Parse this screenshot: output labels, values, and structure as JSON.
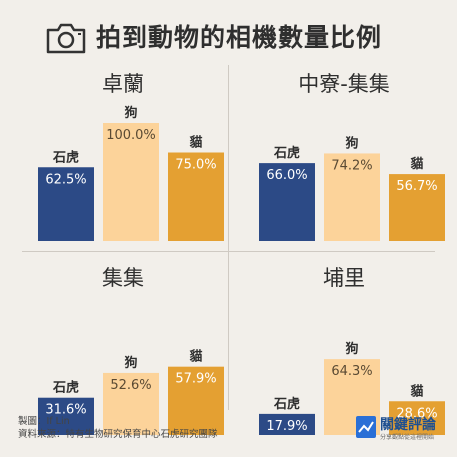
{
  "title": "拍到動物的相機數量比例",
  "colors": {
    "tiger": "#2c4a86",
    "dog": "#fcd39a",
    "cat": "#e4a032",
    "tiger_text": "#ffffff",
    "dog_text": "#5a4a33",
    "cat_text": "#ffffff"
  },
  "chart_data": [
    {
      "type": "bar",
      "title": "卓蘭",
      "categories": [
        "石虎",
        "狗",
        "貓"
      ],
      "values": [
        62.5,
        100.0,
        75.0
      ],
      "value_labels": [
        "62.5%",
        "100.0%",
        "75.0%"
      ],
      "ylim": [
        0,
        100
      ]
    },
    {
      "type": "bar",
      "title": "中寮-集集",
      "categories": [
        "石虎",
        "狗",
        "貓"
      ],
      "values": [
        66.0,
        74.2,
        56.7
      ],
      "value_labels": [
        "66.0%",
        "74.2%",
        "56.7%"
      ],
      "ylim": [
        0,
        100
      ]
    },
    {
      "type": "bar",
      "title": "集集",
      "categories": [
        "石虎",
        "狗",
        "貓"
      ],
      "values": [
        31.6,
        52.6,
        57.9
      ],
      "value_labels": [
        "31.6%",
        "52.6%",
        "57.9%"
      ],
      "ylim": [
        0,
        100
      ]
    },
    {
      "type": "bar",
      "title": "埔里",
      "categories": [
        "石虎",
        "狗",
        "貓"
      ],
      "values": [
        17.9,
        64.3,
        28.6
      ],
      "value_labels": [
        "17.9%",
        "64.3%",
        "28.6%"
      ],
      "ylim": [
        0,
        100
      ]
    }
  ],
  "footer": {
    "maker": "製圖：If Lin",
    "source": "資料來源：特有生物研究保育中心石虎研究團隊"
  },
  "logo": {
    "name": "關鍵評論",
    "tagline": "分享觀點從這裡開始"
  }
}
